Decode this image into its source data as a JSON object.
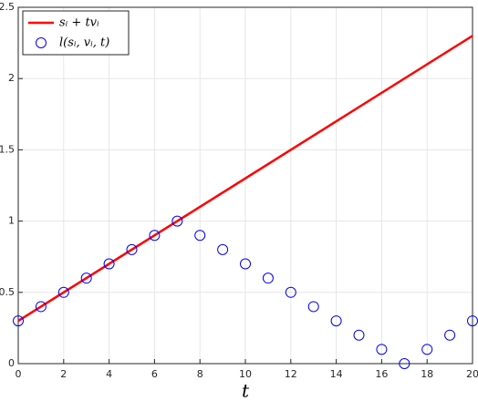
{
  "chart_data": {
    "type": "line",
    "xlabel": "t",
    "xlim": [
      0,
      20
    ],
    "xticks": [
      0,
      2,
      4,
      6,
      8,
      10,
      12,
      14,
      16,
      18,
      20
    ],
    "ylim": [
      0,
      2.5
    ],
    "yticks": [
      0,
      0.5,
      1,
      1.5,
      2,
      2.5
    ],
    "grid": true,
    "legend": "upper-left",
    "series": [
      {
        "name": "sᵢ + tvᵢ",
        "type": "line",
        "color": "#ff0000",
        "x": [
          0,
          20
        ],
        "values": [
          0.3,
          2.3
        ]
      },
      {
        "name": "l(sᵢ, vᵢ, t)",
        "type": "scatter",
        "color": "#0000ff",
        "x": [
          0,
          1,
          2,
          3,
          4,
          5,
          6,
          7,
          8,
          9,
          10,
          11,
          12,
          13,
          14,
          15,
          16,
          17,
          18,
          19,
          20
        ],
        "values": [
          0.3,
          0.4,
          0.5,
          0.6,
          0.7,
          0.8,
          0.9,
          1.0,
          0.9,
          0.8,
          0.7,
          0.6,
          0.5,
          0.4,
          0.3,
          0.2,
          0.1,
          0,
          0.1,
          0.2,
          0.3
        ]
      }
    ]
  }
}
